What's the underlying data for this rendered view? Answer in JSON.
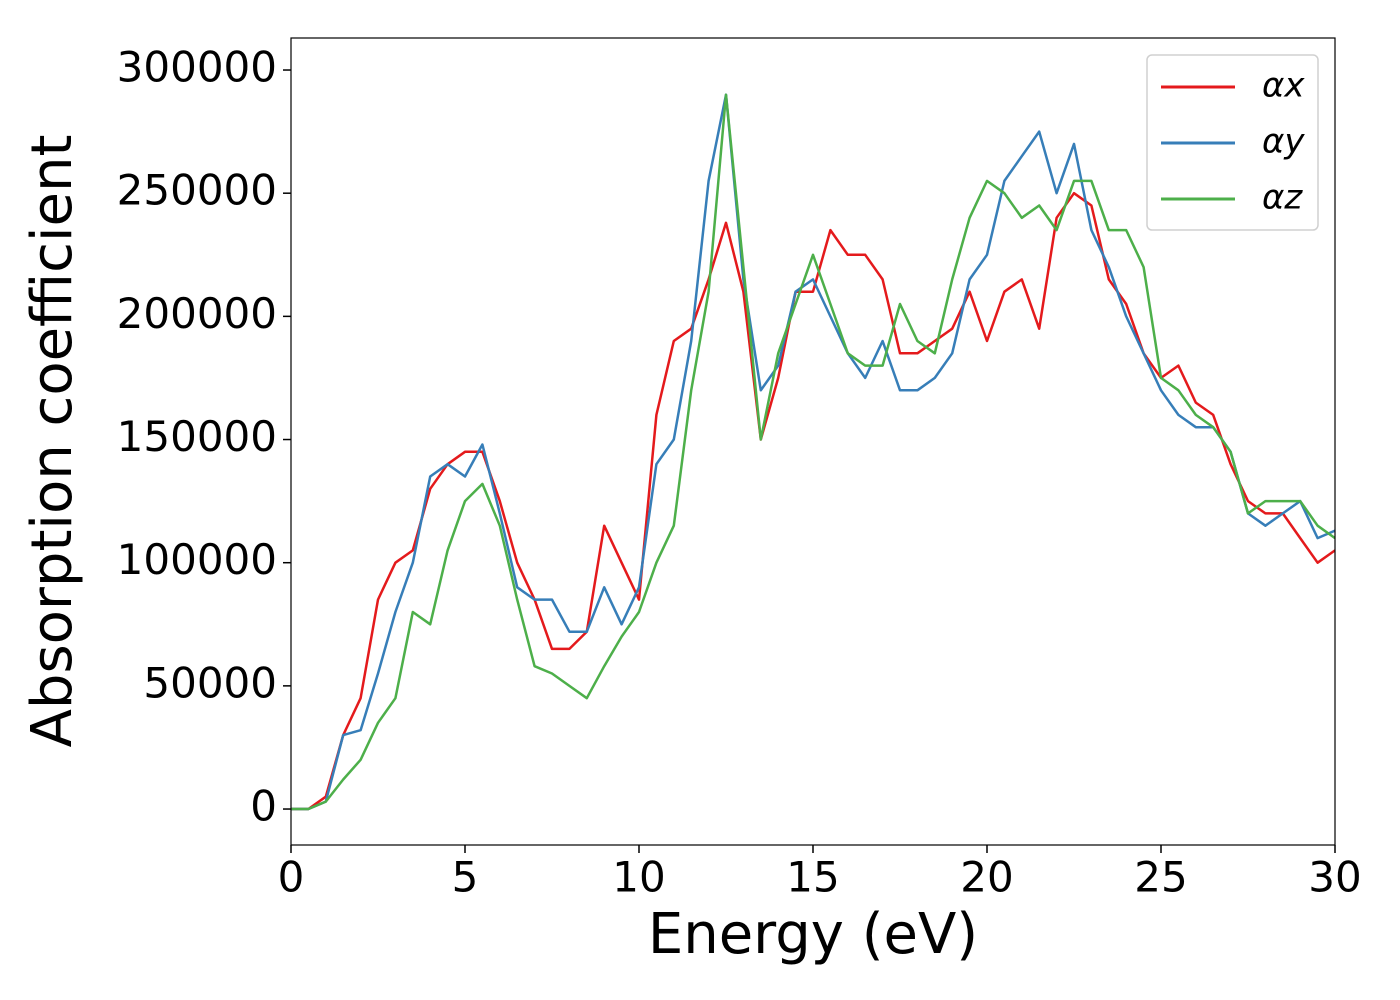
{
  "chart_data": {
    "type": "line",
    "xlabel": "Energy (eV)",
    "ylabel": "Absorption coefficient",
    "x": [
      0,
      0.5,
      1,
      1.5,
      2,
      2.5,
      3,
      3.5,
      4,
      4.5,
      5,
      5.5,
      6,
      6.5,
      7,
      7.5,
      8,
      8.5,
      9,
      9.5,
      10,
      10.5,
      11,
      11.5,
      12,
      12.5,
      13,
      13.5,
      14,
      14.5,
      15,
      15.5,
      16,
      16.5,
      17,
      17.5,
      18,
      18.5,
      19,
      19.5,
      20,
      20.5,
      21,
      21.5,
      22,
      22.5,
      23,
      23.5,
      24,
      24.5,
      25,
      25.5,
      26,
      26.5,
      27,
      27.5,
      28,
      28.5,
      29,
      29.5,
      30
    ],
    "series": [
      {
        "name": "αx",
        "color": "#e41a1c",
        "values": [
          0,
          0,
          5000,
          30000,
          45000,
          85000,
          100000,
          105000,
          130000,
          140000,
          145000,
          145000,
          125000,
          100000,
          85000,
          65000,
          65000,
          72000,
          115000,
          100000,
          85000,
          160000,
          190000,
          195000,
          215000,
          238000,
          210000,
          150000,
          175000,
          210000,
          210000,
          235000,
          225000,
          225000,
          215000,
          185000,
          185000,
          190000,
          195000,
          210000,
          190000,
          210000,
          215000,
          195000,
          240000,
          250000,
          245000,
          215000,
          205000,
          185000,
          175000,
          180000,
          165000,
          160000,
          140000,
          125000,
          120000,
          120000,
          110000,
          100000,
          105000
        ]
      },
      {
        "name": "αy",
        "color": "#377eb8",
        "values": [
          0,
          0,
          3000,
          30000,
          32000,
          55000,
          80000,
          100000,
          135000,
          140000,
          135000,
          148000,
          120000,
          90000,
          85000,
          85000,
          72000,
          72000,
          90000,
          75000,
          90000,
          140000,
          150000,
          190000,
          255000,
          290000,
          215000,
          170000,
          180000,
          210000,
          215000,
          200000,
          185000,
          175000,
          190000,
          170000,
          170000,
          175000,
          185000,
          215000,
          225000,
          255000,
          265000,
          275000,
          250000,
          270000,
          235000,
          220000,
          200000,
          185000,
          170000,
          160000,
          155000,
          155000,
          145000,
          120000,
          115000,
          120000,
          125000,
          110000,
          113000
        ]
      },
      {
        "name": "αz",
        "color": "#4daf4a",
        "values": [
          0,
          0,
          3000,
          12000,
          20000,
          35000,
          45000,
          80000,
          75000,
          105000,
          125000,
          132000,
          115000,
          85000,
          58000,
          55000,
          50000,
          45000,
          58000,
          70000,
          80000,
          100000,
          115000,
          170000,
          210000,
          290000,
          220000,
          150000,
          185000,
          205000,
          225000,
          205000,
          185000,
          180000,
          180000,
          205000,
          190000,
          185000,
          215000,
          240000,
          255000,
          250000,
          240000,
          245000,
          235000,
          255000,
          255000,
          235000,
          235000,
          220000,
          175000,
          170000,
          160000,
          155000,
          145000,
          120000,
          125000,
          125000,
          125000,
          115000,
          110000
        ]
      }
    ],
    "xlim": [
      0,
      30
    ],
    "xticks": [
      0,
      5,
      10,
      15,
      20,
      25,
      30
    ],
    "ylim": [
      -14600,
      313000
    ],
    "yticks": [
      0,
      50000,
      100000,
      150000,
      200000,
      250000,
      300000
    ],
    "legend": "upper right"
  }
}
